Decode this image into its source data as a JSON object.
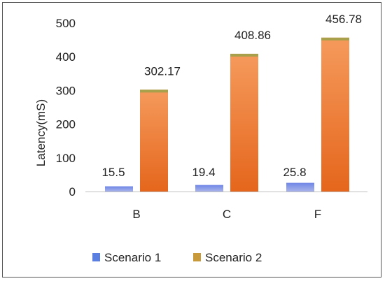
{
  "chart_data": {
    "type": "bar",
    "title": "",
    "xlabel": "",
    "ylabel": "Latency(mS)",
    "categories": [
      "B",
      "C",
      "F"
    ],
    "ylim": [
      0,
      500
    ],
    "yticks": [
      0,
      100,
      200,
      300,
      400,
      500
    ],
    "grid": false,
    "legend_position": "bottom",
    "series": [
      {
        "name": "Scenario 1",
        "values": [
          15.5,
          19.4,
          25.8
        ],
        "labels": [
          "15.5",
          "19.4",
          "25.8"
        ],
        "color": "#7b8fe0",
        "color_top": "#6f86e6",
        "color_bottom": "#a9b4ea"
      },
      {
        "name": "Scenario 2",
        "values": [
          302.17,
          408.86,
          456.78
        ],
        "labels": [
          "302.17",
          "408.86",
          "456.78"
        ],
        "color": "#ed7d31",
        "color_top": "#f59a5c",
        "color_bottom": "#e5661c",
        "cap_color": "#a8a04a"
      }
    ],
    "legend_swatch_colors": [
      "#5a7fe0",
      "#c89a3a"
    ]
  }
}
